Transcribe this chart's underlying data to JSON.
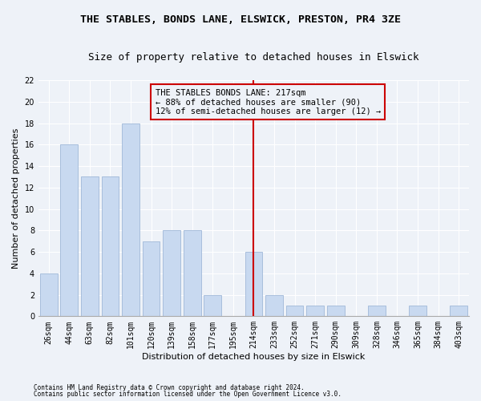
{
  "title1": "THE STABLES, BONDS LANE, ELSWICK, PRESTON, PR4 3ZE",
  "title2": "Size of property relative to detached houses in Elswick",
  "xlabel": "Distribution of detached houses by size in Elswick",
  "ylabel": "Number of detached properties",
  "categories": [
    "26sqm",
    "44sqm",
    "63sqm",
    "82sqm",
    "101sqm",
    "120sqm",
    "139sqm",
    "158sqm",
    "177sqm",
    "195sqm",
    "214sqm",
    "233sqm",
    "252sqm",
    "271sqm",
    "290sqm",
    "309sqm",
    "328sqm",
    "346sqm",
    "365sqm",
    "384sqm",
    "403sqm"
  ],
  "values": [
    4,
    16,
    13,
    13,
    18,
    7,
    8,
    8,
    2,
    0,
    6,
    2,
    1,
    1,
    1,
    0,
    1,
    0,
    1,
    0,
    1
  ],
  "bar_color": "#c8d9f0",
  "bar_edgecolor": "#a0b8d8",
  "vline_color": "#cc0000",
  "vline_x_index": 10,
  "annotation_title": "THE STABLES BONDS LANE: 217sqm",
  "annotation_line1": "← 88% of detached houses are smaller (90)",
  "annotation_line2": "12% of semi-detached houses are larger (12) →",
  "annotation_box_edgecolor": "#cc0000",
  "ylim": [
    0,
    22
  ],
  "yticks": [
    0,
    2,
    4,
    6,
    8,
    10,
    12,
    14,
    16,
    18,
    20,
    22
  ],
  "footnote1": "Contains HM Land Registry data © Crown copyright and database right 2024.",
  "footnote2": "Contains public sector information licensed under the Open Government Licence v3.0.",
  "background_color": "#eef2f8",
  "grid_color": "#ffffff",
  "title_fontsize": 9.5,
  "subtitle_fontsize": 9,
  "axis_label_fontsize": 8,
  "tick_fontsize": 7,
  "annot_fontsize": 7.5,
  "footnote_fontsize": 5.5
}
